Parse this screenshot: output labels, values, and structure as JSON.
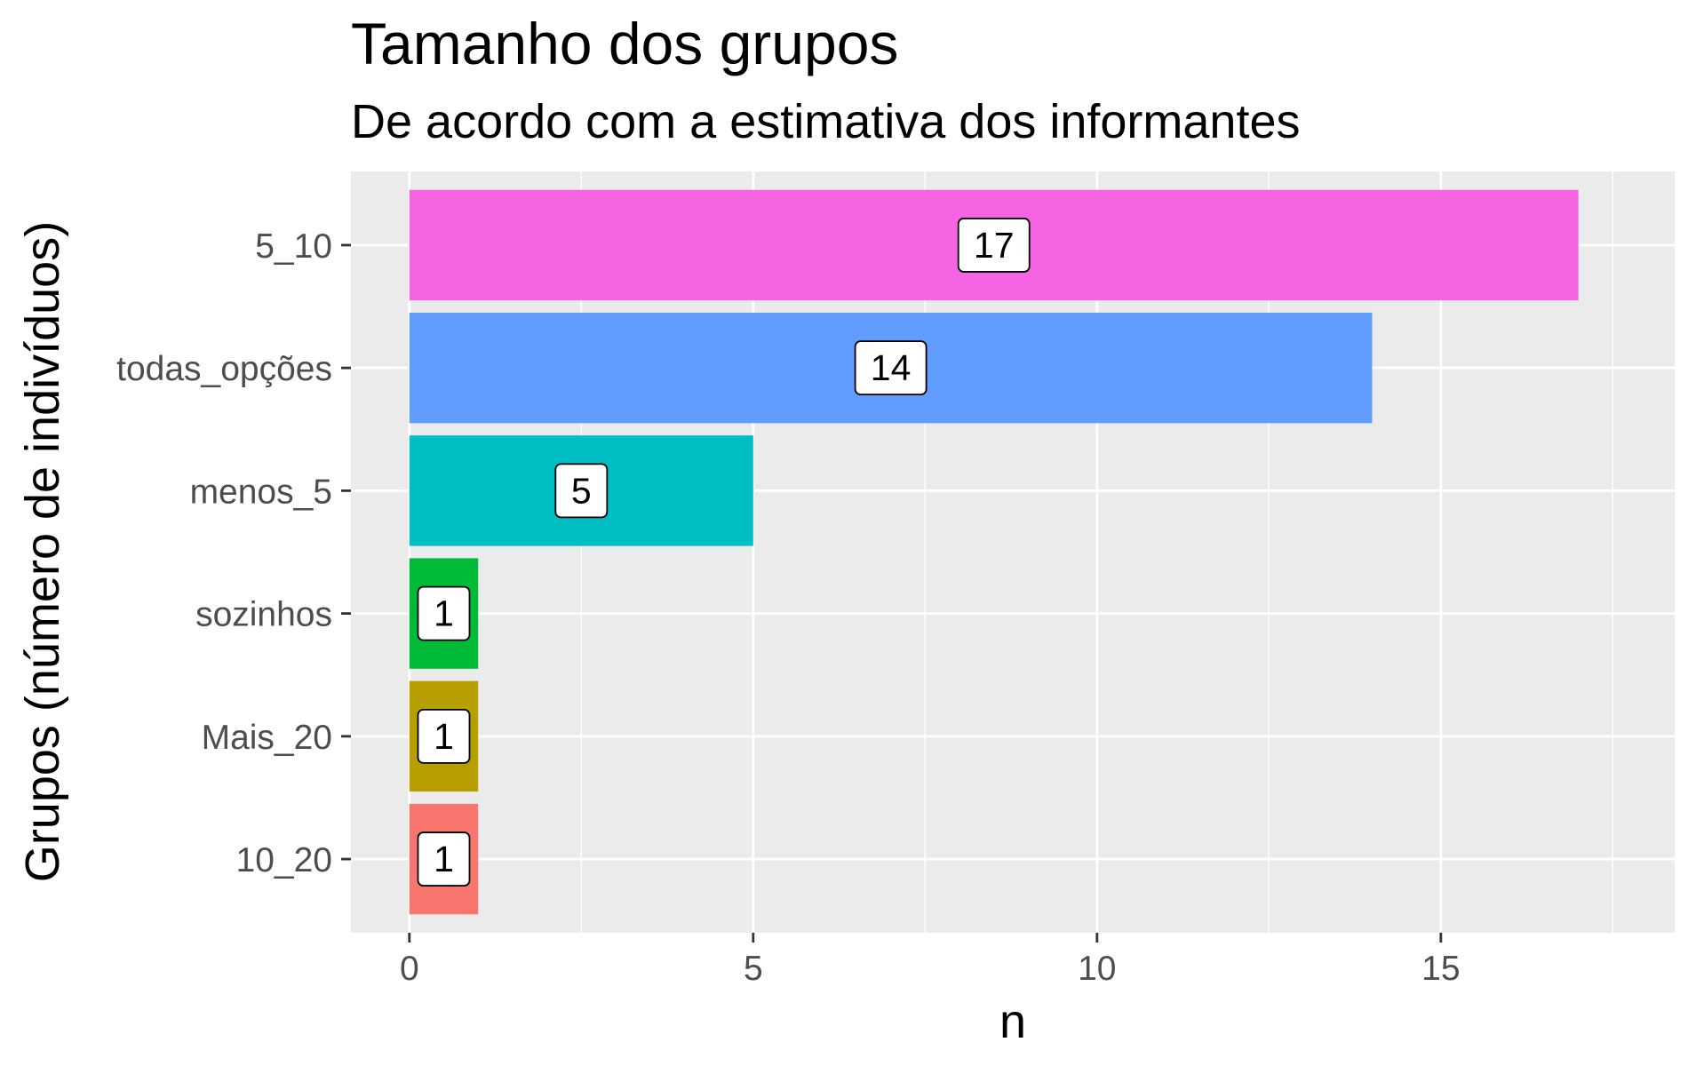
{
  "chart_data": {
    "type": "bar",
    "orientation": "horizontal",
    "title": "Tamanho dos grupos",
    "subtitle": "De acordo com a estimativa dos informantes",
    "xlabel": "n",
    "ylabel": "Grupos (número de indivíduos)",
    "categories": [
      "10_20",
      "Mais_20",
      "sozinhos",
      "menos_5",
      "todas_opções",
      "5_10"
    ],
    "values": [
      1,
      1,
      1,
      5,
      14,
      17
    ],
    "colors": [
      "#F8766D",
      "#B79F00",
      "#00BA38",
      "#00BFC4",
      "#619CFF",
      "#F564E3"
    ],
    "xlim": [
      -0.85,
      18.4
    ],
    "xticks": [
      0,
      5,
      10,
      15
    ],
    "grid": true,
    "legend": "none",
    "background": "#EBEBEB"
  }
}
